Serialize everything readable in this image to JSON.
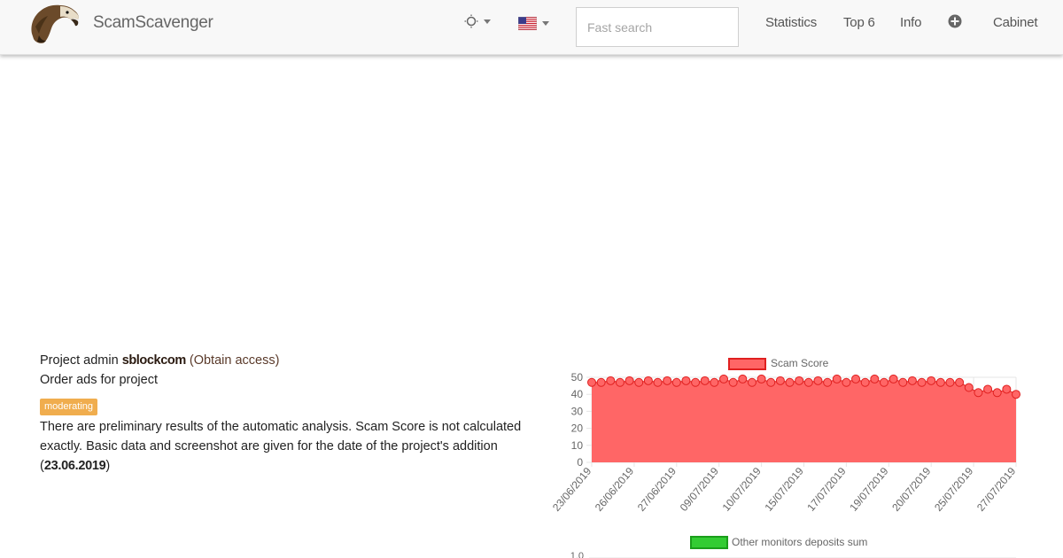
{
  "brand": {
    "name": "ScamScavenger",
    "logo_icon": "vulture-logo-icon"
  },
  "nav": {
    "theme_icon": "sun-icon",
    "lang_icon": "us-flag-icon",
    "search_placeholder": "Fast search",
    "links": [
      "Statistics",
      "Top 6",
      "Info"
    ],
    "add_icon": "plus-circle-icon",
    "cabinet": "Cabinet"
  },
  "project": {
    "admin_prefix": "Project admin",
    "admin_name": "sblockcom",
    "obtain_access": "(Obtain access)",
    "order_ads": "Order ads for project",
    "badge": "moderating",
    "note_text": "There are preliminary results of the automatic analysis. Scam Score is not calculated exactly. Basic data and screenshot are given for the date of the project's addition",
    "note_open": "(",
    "note_date": "23.06.2019",
    "note_close": ")"
  },
  "colors": {
    "scam_fill": "#ff6666",
    "scam_stroke": "#e02020",
    "deposits_fill": "#33cc33",
    "deposits_stroke": "#1a9e1a",
    "badge": "#f0ad4e"
  },
  "chart_data": [
    {
      "type": "area",
      "legend": "Scam Score",
      "ylim": [
        0,
        50
      ],
      "yticks": [
        0,
        10,
        20,
        30,
        40,
        50
      ],
      "xtick_labels": [
        "23/06/2019",
        "26/06/2019",
        "27/06/2019",
        "09/07/2019",
        "10/07/2019",
        "15/07/2019",
        "17/07/2019",
        "19/07/2019",
        "20/07/2019",
        "25/07/2019",
        "27/07/2019"
      ],
      "values": [
        47,
        47,
        48,
        47,
        48,
        47,
        48,
        47,
        48,
        47,
        48,
        47,
        48,
        47,
        49,
        47,
        49,
        47,
        49,
        47,
        48,
        47,
        48,
        47,
        48,
        47,
        49,
        47,
        49,
        47,
        49,
        47,
        49,
        47,
        48,
        47,
        48,
        47,
        47,
        47,
        44,
        41,
        43,
        41,
        43,
        40
      ]
    },
    {
      "type": "area",
      "legend": "Other monitors deposits sum",
      "ytick_top": "1.0"
    }
  ]
}
